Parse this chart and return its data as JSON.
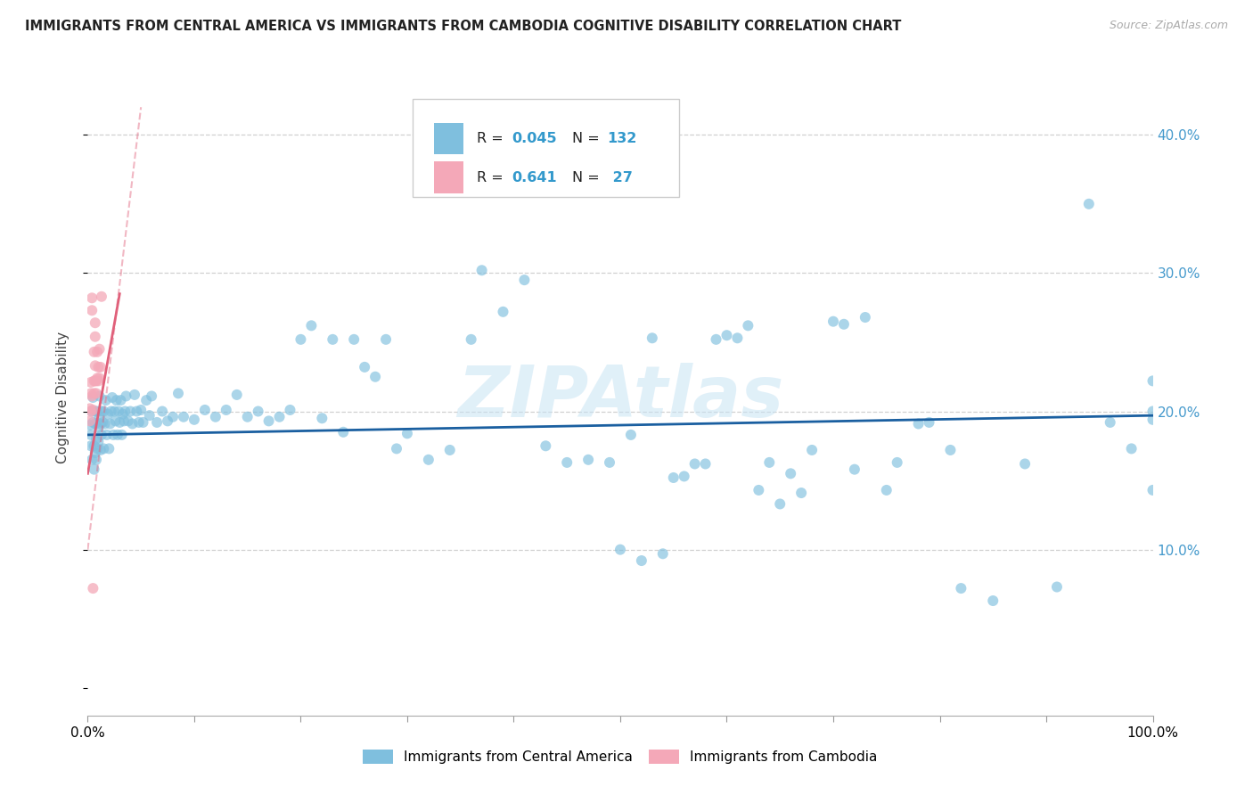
{
  "title": "IMMIGRANTS FROM CENTRAL AMERICA VS IMMIGRANTS FROM CAMBODIA COGNITIVE DISABILITY CORRELATION CHART",
  "source": "Source: ZipAtlas.com",
  "ylabel": "Cognitive Disability",
  "xlim": [
    0.0,
    1.0
  ],
  "ylim": [
    -0.02,
    0.44
  ],
  "legend_label1": "Immigrants from Central America",
  "legend_label2": "Immigrants from Cambodia",
  "color_blue": "#7fbfde",
  "color_pink": "#f4a8b8",
  "line_blue": "#1a5fa0",
  "line_pink": "#e0607a",
  "watermark": "ZIPAtlas",
  "ytick_vals": [
    0.0,
    0.1,
    0.2,
    0.3,
    0.4
  ],
  "ytick_labels_right": [
    "",
    "10.0%",
    "20.0%",
    "30.0%",
    "40.0%"
  ],
  "xtick_positions": [
    0.0,
    0.1,
    0.2,
    0.3,
    0.4,
    0.5,
    0.6,
    0.7,
    0.8,
    0.9,
    1.0
  ],
  "blue_line": [
    0.0,
    0.183,
    1.0,
    0.197
  ],
  "pink_line": [
    0.0,
    0.155,
    0.03,
    0.285
  ],
  "pink_dash": [
    0.0,
    0.1,
    0.05,
    0.42
  ],
  "blue_points_x": [
    0.002,
    0.003,
    0.003,
    0.004,
    0.004,
    0.005,
    0.005,
    0.006,
    0.006,
    0.007,
    0.007,
    0.007,
    0.008,
    0.008,
    0.009,
    0.009,
    0.01,
    0.01,
    0.011,
    0.011,
    0.012,
    0.012,
    0.013,
    0.013,
    0.014,
    0.015,
    0.015,
    0.016,
    0.017,
    0.018,
    0.019,
    0.02,
    0.021,
    0.022,
    0.023,
    0.024,
    0.025,
    0.026,
    0.027,
    0.028,
    0.029,
    0.03,
    0.031,
    0.032,
    0.033,
    0.034,
    0.035,
    0.036,
    0.038,
    0.04,
    0.042,
    0.044,
    0.046,
    0.048,
    0.05,
    0.052,
    0.055,
    0.058,
    0.06,
    0.065,
    0.07,
    0.075,
    0.08,
    0.085,
    0.09,
    0.1,
    0.11,
    0.12,
    0.13,
    0.14,
    0.15,
    0.16,
    0.17,
    0.18,
    0.19,
    0.2,
    0.21,
    0.22,
    0.23,
    0.24,
    0.25,
    0.26,
    0.27,
    0.28,
    0.29,
    0.3,
    0.32,
    0.34,
    0.36,
    0.37,
    0.39,
    0.41,
    0.43,
    0.45,
    0.47,
    0.49,
    0.51,
    0.53,
    0.55,
    0.57,
    0.59,
    0.61,
    0.63,
    0.65,
    0.67,
    0.7,
    0.72,
    0.75,
    0.78,
    0.82,
    0.85,
    0.88,
    0.91,
    0.94,
    0.96,
    0.98,
    1.0,
    1.0,
    1.0,
    1.0,
    0.5,
    0.52,
    0.54,
    0.56,
    0.58,
    0.6,
    0.62,
    0.64,
    0.66,
    0.68,
    0.71,
    0.73,
    0.76,
    0.79,
    0.81
  ],
  "blue_points_y": [
    0.19,
    0.175,
    0.183,
    0.165,
    0.2,
    0.192,
    0.21,
    0.175,
    0.158,
    0.191,
    0.2,
    0.17,
    0.165,
    0.18,
    0.2,
    0.173,
    0.188,
    0.178,
    0.196,
    0.211,
    0.172,
    0.191,
    0.183,
    0.2,
    0.192,
    0.2,
    0.173,
    0.191,
    0.208,
    0.183,
    0.198,
    0.173,
    0.191,
    0.2,
    0.21,
    0.183,
    0.2,
    0.193,
    0.208,
    0.183,
    0.2,
    0.192,
    0.208,
    0.183,
    0.198,
    0.193,
    0.2,
    0.211,
    0.193,
    0.2,
    0.191,
    0.212,
    0.2,
    0.192,
    0.201,
    0.192,
    0.208,
    0.197,
    0.211,
    0.192,
    0.2,
    0.193,
    0.196,
    0.213,
    0.196,
    0.194,
    0.201,
    0.196,
    0.201,
    0.212,
    0.196,
    0.2,
    0.193,
    0.196,
    0.201,
    0.252,
    0.262,
    0.195,
    0.252,
    0.185,
    0.252,
    0.232,
    0.225,
    0.252,
    0.173,
    0.184,
    0.165,
    0.172,
    0.252,
    0.302,
    0.272,
    0.295,
    0.175,
    0.163,
    0.165,
    0.163,
    0.183,
    0.253,
    0.152,
    0.162,
    0.252,
    0.253,
    0.143,
    0.133,
    0.141,
    0.265,
    0.158,
    0.143,
    0.191,
    0.072,
    0.063,
    0.162,
    0.073,
    0.35,
    0.192,
    0.173,
    0.2,
    0.143,
    0.222,
    0.194,
    0.1,
    0.092,
    0.097,
    0.153,
    0.162,
    0.255,
    0.262,
    0.163,
    0.155,
    0.172,
    0.263,
    0.268,
    0.163,
    0.192,
    0.172
  ],
  "pink_points_x": [
    0.002,
    0.002,
    0.003,
    0.003,
    0.003,
    0.004,
    0.004,
    0.004,
    0.005,
    0.005,
    0.006,
    0.006,
    0.006,
    0.007,
    0.007,
    0.007,
    0.007,
    0.008,
    0.008,
    0.009,
    0.009,
    0.01,
    0.01,
    0.011,
    0.011,
    0.012,
    0.013
  ],
  "pink_points_y": [
    0.193,
    0.202,
    0.213,
    0.221,
    0.2,
    0.211,
    0.273,
    0.282,
    0.072,
    0.201,
    0.213,
    0.222,
    0.243,
    0.254,
    0.264,
    0.233,
    0.222,
    0.222,
    0.213,
    0.243,
    0.224,
    0.232,
    0.222,
    0.245,
    0.224,
    0.232,
    0.283
  ]
}
